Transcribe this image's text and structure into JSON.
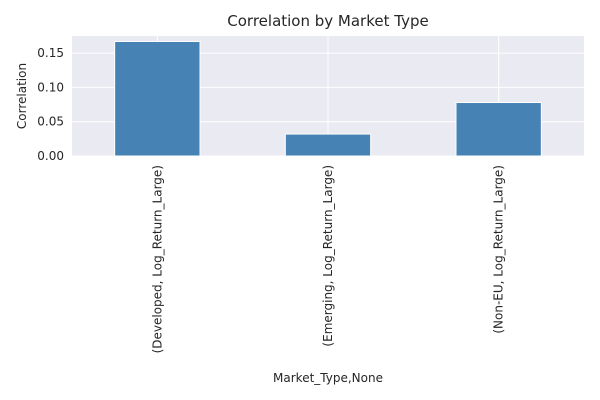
{
  "chart_data": {
    "type": "bar",
    "title": "Correlation by Market Type",
    "xlabel": "Market_Type,None",
    "ylabel": "Correlation",
    "categories": [
      "(Developed, Log_Return_Large)",
      "(Emerging, Log_Return_Large)",
      "(Non-EU, Log_Return_Large)"
    ],
    "values": [
      0.167,
      0.032,
      0.078
    ],
    "ylim": [
      0,
      0.175
    ],
    "yticks": [
      "0.00",
      "0.05",
      "0.10",
      "0.15"
    ],
    "grid": true,
    "colors": {
      "bar": "#4682b4",
      "plot_bg": "#eaeaf2",
      "grid": "#ffffff"
    }
  }
}
